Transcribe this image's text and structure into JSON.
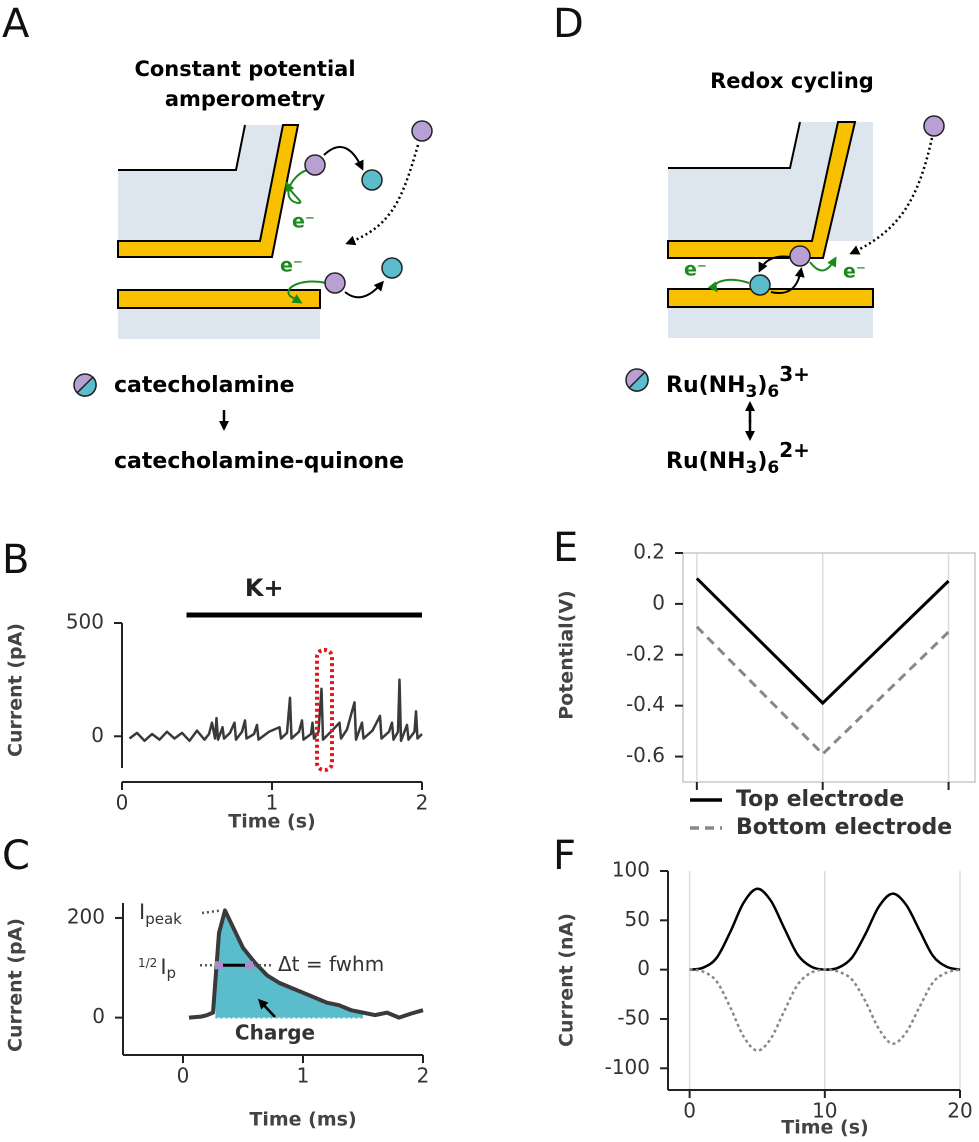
{
  "diagrams": [
    {
      "label": "A",
      "title": [
        "Constant potential",
        "amperometry"
      ],
      "electrons": [
        "e⁻",
        "e⁻"
      ],
      "reactant": "catecholamine",
      "product": "catecholamine-quinone"
    },
    {
      "label": "D",
      "title": [
        "Redox cycling"
      ],
      "electrons": [
        "e⁻",
        "e⁻"
      ],
      "reactant": [
        "Ru(NH",
        "3",
        ")",
        "6",
        "3+"
      ],
      "product": [
        "Ru(NH",
        "3",
        ")",
        "6",
        "2+"
      ]
    }
  ],
  "chart_data": [
    {
      "label": "B",
      "type": "line",
      "xlabel": "Time (s)",
      "ylabel": "Current (pA)",
      "x": [
        0.05,
        0.1,
        0.15,
        0.2,
        0.25,
        0.3,
        0.35,
        0.4,
        0.45,
        0.5,
        0.55,
        0.58,
        0.6,
        0.62,
        0.63,
        0.64,
        0.66,
        0.67,
        0.68,
        0.72,
        0.75,
        0.76,
        0.8,
        0.82,
        0.83,
        0.88,
        0.9,
        0.91,
        0.98,
        1.05,
        1.06,
        1.1,
        1.12,
        1.13,
        1.18,
        1.2,
        1.21,
        1.26,
        1.27,
        1.28,
        1.31,
        1.33,
        1.34,
        1.4,
        1.45,
        1.46,
        1.5,
        1.55,
        1.56,
        1.6,
        1.61,
        1.67,
        1.72,
        1.73,
        1.78,
        1.8,
        1.81,
        1.84,
        1.85,
        1.86,
        1.9,
        1.91,
        1.95,
        1.96,
        1.97,
        2.0
      ],
      "values": [
        -10,
        15,
        -20,
        10,
        -15,
        20,
        -10,
        15,
        -20,
        25,
        -15,
        10,
        60,
        -10,
        80,
        -15,
        20,
        40,
        -10,
        15,
        60,
        -15,
        20,
        70,
        -10,
        10,
        50,
        -15,
        20,
        40,
        -10,
        15,
        170,
        -10,
        20,
        70,
        -15,
        10,
        60,
        -10,
        20,
        210,
        -15,
        25,
        60,
        -10,
        30,
        150,
        -15,
        60,
        -10,
        25,
        90,
        -10,
        20,
        60,
        -15,
        20,
        250,
        -20,
        50,
        -15,
        20,
        110,
        -10,
        10
      ],
      "color": "#3a3a3a",
      "xlim": [
        0,
        2
      ],
      "ylim": [
        -140,
        500
      ],
      "xticks": [
        0,
        1,
        2
      ],
      "yticks": [
        0,
        500
      ],
      "stimulus": {
        "label": "K+",
        "x": [
          0.43,
          2.0
        ]
      },
      "highlight_x": [
        1.3,
        1.4
      ],
      "highlight_color": "#e8141b"
    },
    {
      "label": "C",
      "type": "area",
      "xlabel": "Time (ms)",
      "ylabel": "Current (pA)",
      "x": [
        0.05,
        0.15,
        0.2,
        0.25,
        0.3,
        0.35,
        0.4,
        0.5,
        0.6,
        0.7,
        0.8,
        0.9,
        1.0,
        1.1,
        1.2,
        1.3,
        1.4,
        1.5,
        1.6,
        1.7,
        1.8,
        1.9,
        2.0
      ],
      "values": [
        0,
        2,
        5,
        10,
        170,
        215,
        190,
        140,
        110,
        85,
        70,
        60,
        50,
        40,
        30,
        25,
        15,
        10,
        5,
        10,
        0,
        8,
        15
      ],
      "color": "#3a3a3a",
      "fill": "#5bbccc",
      "fill_x": [
        0.27,
        1.5
      ],
      "xlim": [
        -0.5,
        2
      ],
      "ylim": [
        -75,
        230
      ],
      "xticks": [
        0,
        1,
        2
      ],
      "yticks": [
        0,
        200
      ],
      "peak_label": [
        "I",
        "peak"
      ],
      "half_label": [
        "1/2",
        "I",
        "p"
      ],
      "fwhm": {
        "y": 105,
        "x": [
          0.3,
          0.55
        ],
        "label": "Δt = fwhm",
        "color": "#a58fd0"
      },
      "charge_label": "Charge"
    },
    {
      "label": "E",
      "type": "line",
      "ylabel": "Potential(V)",
      "x": [
        0,
        10,
        20
      ],
      "series": [
        {
          "name": "Top electrode",
          "color": "#000000",
          "values": [
            0.1,
            -0.39,
            0.09
          ]
        },
        {
          "name": "Bottom electrode",
          "color": "#888888",
          "line_style": "dashed",
          "values": [
            -0.09,
            -0.59,
            -0.11
          ]
        }
      ],
      "xlim": [
        -1.1,
        22.1
      ],
      "ylim": [
        -0.7,
        0.2
      ],
      "xticks": [
        0,
        10,
        20
      ],
      "yticks": [
        0.2,
        0,
        -0.2,
        -0.4,
        -0.6
      ],
      "xgrid": true,
      "frame": true,
      "legend": "below"
    },
    {
      "label": "F",
      "type": "line",
      "xlabel": "Time (s)",
      "ylabel": "Current (nA)",
      "x": [
        0,
        1,
        2,
        3,
        4,
        5,
        6,
        7,
        8,
        9,
        10,
        11,
        12,
        13,
        14,
        15,
        16,
        17,
        18,
        19,
        20
      ],
      "series": [
        {
          "color": "#000000",
          "values": [
            0,
            2,
            12,
            38,
            68,
            82,
            70,
            42,
            15,
            3,
            0,
            2,
            12,
            36,
            64,
            77,
            66,
            40,
            14,
            3,
            0
          ]
        },
        {
          "color": "#888888",
          "line_style": "dotted",
          "values": [
            0,
            -2,
            -12,
            -38,
            -68,
            -82,
            -70,
            -42,
            -15,
            -3,
            0,
            -2,
            -10,
            -32,
            -60,
            -75,
            -64,
            -38,
            -13,
            -3,
            0
          ]
        }
      ],
      "xlim": [
        -1.6,
        20
      ],
      "ylim": [
        -122,
        100
      ],
      "xticks": [
        0,
        10,
        20
      ],
      "yticks": [
        100,
        50,
        0,
        -50,
        -100
      ],
      "xgrid": true,
      "smooth": true
    }
  ]
}
